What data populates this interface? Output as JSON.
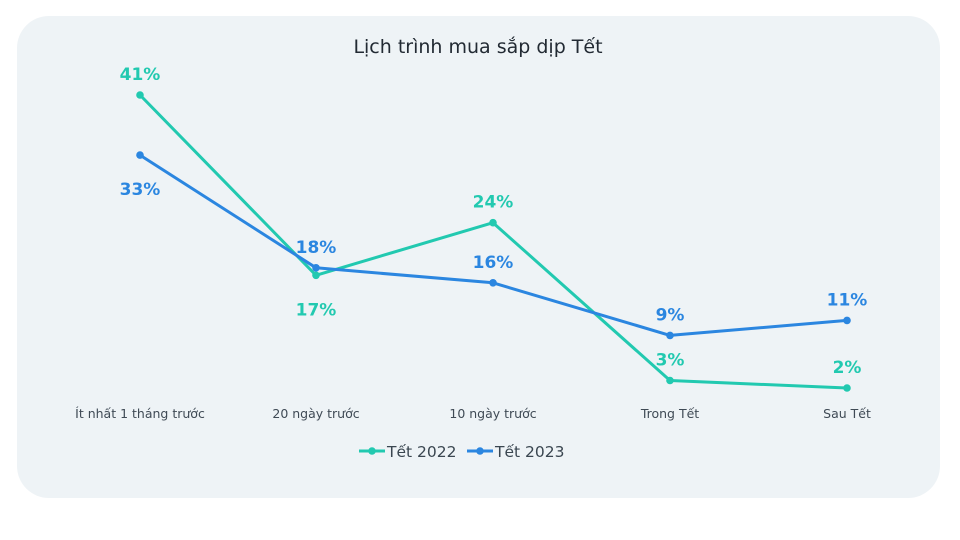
{
  "chart_data": {
    "type": "line",
    "title": "Lịch trình mua sắp dịp Tết",
    "categories": [
      "Ít nhất 1 tháng trước",
      "20 ngày trước",
      "10 ngày trước",
      "Trong Tết",
      "Sau Tết"
    ],
    "series": [
      {
        "name": "Tết 2022",
        "values": [
          41,
          17,
          24,
          3,
          2
        ],
        "labels": [
          "41%",
          "17%",
          "24%",
          "3%",
          "2%"
        ],
        "color": "#22c9b0"
      },
      {
        "name": "Tết 2023",
        "values": [
          33,
          18,
          16,
          9,
          11
        ],
        "labels": [
          "33%",
          "18%",
          "16%",
          "9%",
          "11%"
        ],
        "color": "#2b86e0"
      }
    ],
    "unit": "%",
    "legend": "bottom-center",
    "grid": false
  }
}
